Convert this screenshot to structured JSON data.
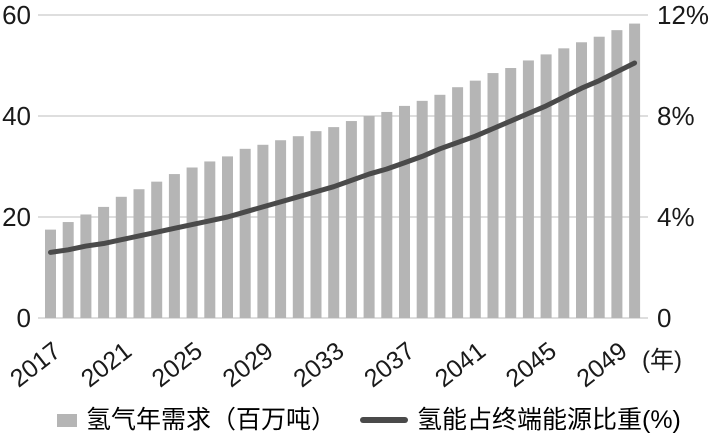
{
  "chart_data": {
    "type": "combo-bar-line",
    "title": "",
    "x": [
      2017,
      2018,
      2019,
      2020,
      2021,
      2022,
      2023,
      2024,
      2025,
      2026,
      2027,
      2028,
      2029,
      2030,
      2031,
      2032,
      2033,
      2034,
      2035,
      2036,
      2037,
      2038,
      2039,
      2040,
      2041,
      2042,
      2043,
      2044,
      2045,
      2046,
      2047,
      2048,
      2049,
      2050
    ],
    "series": [
      {
        "name": "氢气年需求（百万吨）",
        "type": "bar",
        "axis": "left",
        "values": [
          17.5,
          19.0,
          20.5,
          22.0,
          24.0,
          25.5,
          27.0,
          28.5,
          29.8,
          31.0,
          32.0,
          33.5,
          34.3,
          35.2,
          36.0,
          37.0,
          37.8,
          39.0,
          40.0,
          40.8,
          42.0,
          43.0,
          44.2,
          45.7,
          47.0,
          48.5,
          49.5,
          51.0,
          52.2,
          53.4,
          54.6,
          55.7,
          57.0,
          58.3
        ]
      },
      {
        "name": "氢能占终端能源比重(%)",
        "type": "line",
        "axis": "right",
        "values": [
          2.6,
          2.7,
          2.85,
          2.95,
          3.1,
          3.25,
          3.4,
          3.55,
          3.7,
          3.85,
          4.0,
          4.2,
          4.4,
          4.6,
          4.8,
          5.0,
          5.2,
          5.45,
          5.7,
          5.9,
          6.15,
          6.4,
          6.7,
          6.95,
          7.2,
          7.5,
          7.8,
          8.1,
          8.4,
          8.75,
          9.1,
          9.4,
          9.75,
          10.1
        ]
      }
    ],
    "left_axis": {
      "range": [
        0,
        60
      ],
      "ticks": [
        0,
        20,
        40,
        60
      ],
      "tick_labels": [
        "0",
        "20",
        "40",
        "60"
      ]
    },
    "right_axis": {
      "range": [
        0,
        12
      ],
      "ticks": [
        0,
        4,
        8,
        12
      ],
      "tick_labels": [
        "0",
        "4%",
        "8%",
        "12%"
      ]
    },
    "x_axis": {
      "tick_labels": [
        "2017",
        "2021",
        "2025",
        "2029",
        "2033",
        "2037",
        "2041",
        "2045",
        "2049"
      ],
      "unit_label": "(年)",
      "tick_rotation_deg": -38
    },
    "grid": "horizontal",
    "legend_position": "bottom"
  },
  "legend": {
    "items": [
      {
        "label": "氢气年需求（百万吨）",
        "swatch": "bar"
      },
      {
        "label": "氢能占终端能源比重(%)",
        "swatch": "line"
      }
    ]
  },
  "colors": {
    "bar": "#b5b5b5",
    "line": "#4a4a4a",
    "grid": "#c9c9c9",
    "text": "#1a1a1a",
    "background": "#ffffff"
  }
}
